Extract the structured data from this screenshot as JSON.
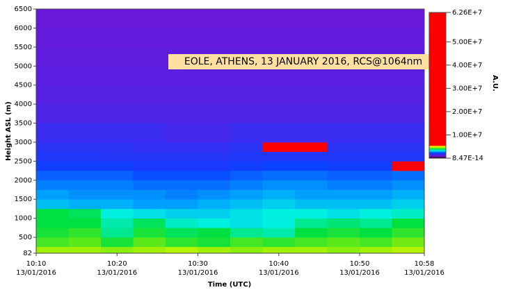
{
  "chart_data": {
    "type": "heatmap",
    "annotation": "EOLE, ATHENS, 13 JANUARY 2016, RCS@1064nm",
    "x_label": "Time (UTC)",
    "y_label": "Height ASL (m)",
    "colorbar_label": "A.U.",
    "xlim": [
      610,
      658
    ],
    "xticks": [
      {
        "value": 610,
        "label": "10:10"
      },
      {
        "value": 620,
        "label": "10:20"
      },
      {
        "value": 630,
        "label": "10:30"
      },
      {
        "value": 640,
        "label": "10:40"
      },
      {
        "value": 650,
        "label": "10:50"
      },
      {
        "value": 658,
        "label": "10:58"
      }
    ],
    "xtick_dates": [
      "13/01/2016",
      "13/01/2016",
      "13/01/2016",
      "13/01/2016",
      "13/01/2016",
      "13/01/2016"
    ],
    "ylim": [
      82,
      6500
    ],
    "yticks": [
      82,
      500,
      1000,
      1500,
      2000,
      2500,
      3000,
      3500,
      4000,
      4500,
      5000,
      5500,
      6000,
      6500
    ],
    "clim": [
      8.47e-14,
      62600000.0
    ],
    "cticks": [
      {
        "value": 62600000.0,
        "label": "6.26E+7"
      },
      {
        "value": 50000000.0,
        "label": "5.00E+7"
      },
      {
        "value": 40000000.0,
        "label": "4.00E+7"
      },
      {
        "value": 30000000.0,
        "label": "3.00E+7"
      },
      {
        "value": 20000000.0,
        "label": "2.00E+7"
      },
      {
        "value": 10000000.0,
        "label": "1.00E+7"
      },
      {
        "value": 8.47e-14,
        "label": "8.47E-14"
      }
    ],
    "colormap": [
      {
        "value": 0,
        "color": "#000000"
      },
      {
        "value": 800000.0,
        "color": "#7a10d0"
      },
      {
        "value": 1500000.0,
        "color": "#3a2cf0"
      },
      {
        "value": 2200000.0,
        "color": "#0a40ff"
      },
      {
        "value": 2800000.0,
        "color": "#00a0ff"
      },
      {
        "value": 3300000.0,
        "color": "#00f0e0"
      },
      {
        "value": 3900000.0,
        "color": "#00e040"
      },
      {
        "value": 4600000.0,
        "color": "#a0f000"
      },
      {
        "value": 5000000.0,
        "color": "#ffff00"
      },
      {
        "value": 5500000.0,
        "color": "#ff0000"
      },
      {
        "value": 62600000.0,
        "color": "#ff0000"
      }
    ],
    "x_bins": [
      610,
      614,
      618,
      622,
      626,
      630,
      634,
      638,
      642,
      646,
      650,
      654,
      658
    ],
    "y_bins": [
      82,
      250,
      500,
      750,
      1000,
      1250,
      1500,
      1750,
      2000,
      2250,
      2500,
      2750,
      3000,
      3500,
      4000,
      4500,
      5000,
      5500,
      6000,
      6500
    ],
    "z": [
      [
        4600000.0,
        4600000.0,
        4500000.0,
        4600000.0,
        4700000.0,
        4600000.0,
        4500000.0,
        4600000.0,
        4600000.0,
        4500000.0,
        4600000.0,
        4700000.0
      ],
      [
        4200000.0,
        4300000.0,
        4000000.0,
        4300000.0,
        4100000.0,
        4000000.0,
        4200000.0,
        4100000.0,
        4200000.0,
        4300000.0,
        4200000.0,
        4400000.0
      ],
      [
        4000000.0,
        4100000.0,
        3600000.0,
        4000000.0,
        3800000.0,
        3900000.0,
        3600000.0,
        3500000.0,
        3900000.0,
        4000000.0,
        3900000.0,
        4100000.0
      ],
      [
        3900000.0,
        3900000.0,
        3500000.0,
        3800000.0,
        3400000.0,
        3300000.0,
        3200000.0,
        3300000.0,
        3600000.0,
        3700000.0,
        3600000.0,
        3900000.0
      ],
      [
        3900000.0,
        3800000.0,
        3300000.0,
        3200000.0,
        3100000.0,
        3100000.0,
        3200000.0,
        3300000.0,
        3300000.0,
        3200000.0,
        3300000.0,
        3400000.0
      ],
      [
        3000000.0,
        2900000.0,
        2900000.0,
        2800000.0,
        2800000.0,
        2900000.0,
        3000000.0,
        3100000.0,
        3000000.0,
        3000000.0,
        3000000.0,
        3100000.0
      ],
      [
        2800000.0,
        2700000.0,
        2700000.0,
        2700000.0,
        2600000.0,
        2700000.0,
        2800000.0,
        2900000.0,
        2800000.0,
        2800000.0,
        2800000.0,
        2900000.0
      ],
      [
        2600000.0,
        2600000.0,
        2600000.0,
        2500000.0,
        2500000.0,
        2500000.0,
        2600000.0,
        2700000.0,
        2700000.0,
        2600000.0,
        2600000.0,
        2700000.0
      ],
      [
        2400000.0,
        2400000.0,
        2400000.0,
        2300000.0,
        2300000.0,
        2300000.0,
        2400000.0,
        2500000.0,
        2500000.0,
        2400000.0,
        2400000.0,
        2500000.0
      ],
      [
        2100000.0,
        2100000.0,
        2100000.0,
        2000000.0,
        2000000.0,
        2000000.0,
        2100000.0,
        2200000.0,
        2200000.0,
        2100000.0,
        2100000.0,
        6000000.0
      ],
      [
        1900000.0,
        1900000.0,
        1800000.0,
        1800000.0,
        1800000.0,
        1800000.0,
        1900000.0,
        1900000.0,
        1900000.0,
        1900000.0,
        1900000.0,
        1900000.0
      ],
      [
        1700000.0,
        1700000.0,
        1700000.0,
        1600000.0,
        1600000.0,
        1600000.0,
        1700000.0,
        6000000.0,
        6000000.0,
        1700000.0,
        1700000.0,
        1700000.0
      ],
      [
        1500000.0,
        1500000.0,
        1500000.0,
        1500000.0,
        1400000.0,
        1400000.0,
        1500000.0,
        1500000.0,
        1500000.0,
        1500000.0,
        1500000.0,
        1500000.0
      ],
      [
        1300000.0,
        1300000.0,
        1300000.0,
        1300000.0,
        1300000.0,
        1300000.0,
        1300000.0,
        1300000.0,
        1300000.0,
        1300000.0,
        1300000.0,
        1300000.0
      ],
      [
        1200000.0,
        1200000.0,
        1200000.0,
        1200000.0,
        1200000.0,
        1200000.0,
        1200000.0,
        1200000.0,
        1200000.0,
        1200000.0,
        1200000.0,
        1200000.0
      ],
      [
        1150000.0,
        1150000.0,
        1150000.0,
        1150000.0,
        1150000.0,
        1150000.0,
        1150000.0,
        1150000.0,
        1150000.0,
        1150000.0,
        1150000.0,
        1150000.0
      ],
      [
        1100000.0,
        1100000.0,
        1100000.0,
        1100000.0,
        1100000.0,
        1100000.0,
        1100000.0,
        1100000.0,
        1100000.0,
        1100000.0,
        1100000.0,
        1100000.0
      ],
      [
        1050000.0,
        1050000.0,
        1050000.0,
        1050000.0,
        1050000.0,
        1050000.0,
        1050000.0,
        1050000.0,
        1050000.0,
        1050000.0,
        1050000.0,
        1050000.0
      ],
      [
        1000000.0,
        1000000.0,
        1000000.0,
        1000000.0,
        1000000.0,
        1000000.0,
        1000000.0,
        1000000.0,
        1000000.0,
        1000000.0,
        1000000.0,
        1000000.0
      ]
    ]
  }
}
